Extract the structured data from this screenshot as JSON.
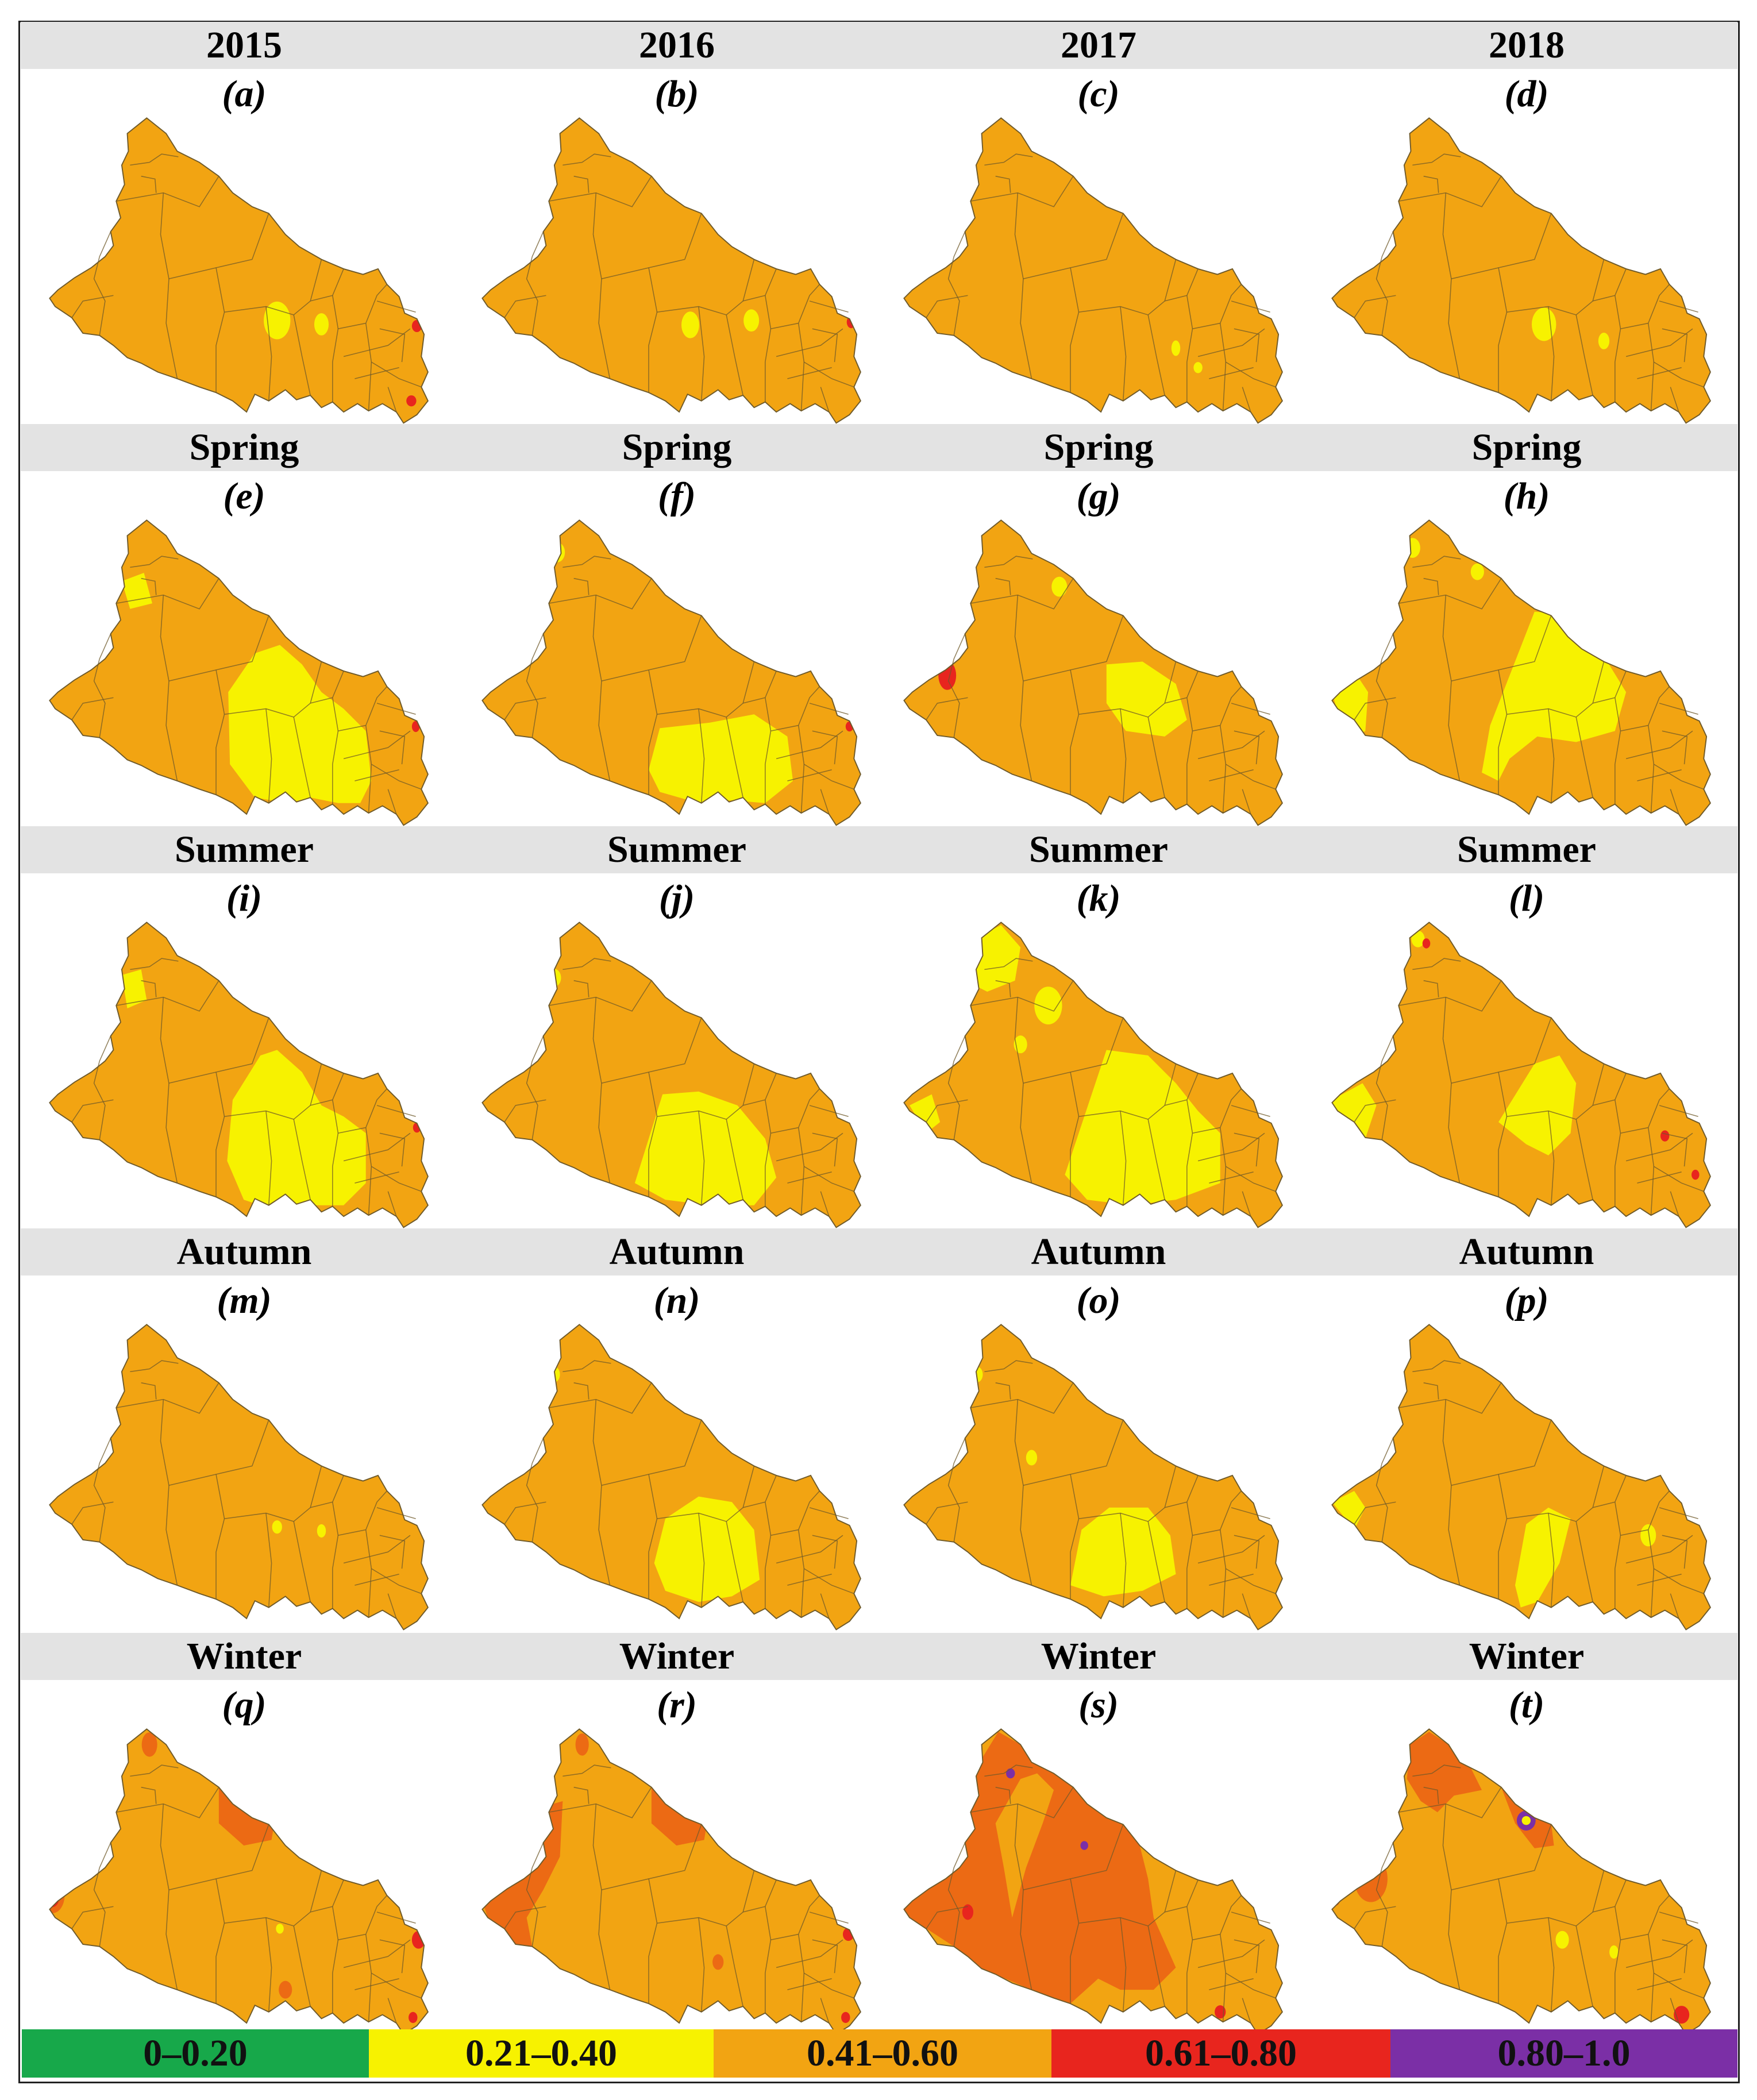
{
  "colors": {
    "class_1": "#17a84a",
    "class_2": "#f7f200",
    "class_3": "#f2a412",
    "class_4": "#e8251e",
    "class_5": "#7b2fa6",
    "dark_orange": "#ec6a14",
    "boundary": "#6f5a2a"
  },
  "rows": [
    {
      "header": [
        "2015",
        "2016",
        "2017",
        "2018"
      ],
      "labels": [
        "(a)",
        "(b)",
        "(c)",
        "(d)"
      ]
    },
    {
      "header": [
        "Spring",
        "Spring",
        "Spring",
        "Spring"
      ],
      "labels": [
        "(e)",
        "(f)",
        "(g)",
        "(h)"
      ]
    },
    {
      "header": [
        "Summer",
        "Summer",
        "Summer",
        "Summer"
      ],
      "labels": [
        "(i)",
        "(j)",
        "(k)",
        "(l)"
      ]
    },
    {
      "header": [
        "Autumn",
        "Autumn",
        "Autumn",
        "Autumn"
      ],
      "labels": [
        "(m)",
        "(n)",
        "(o)",
        "(p)"
      ]
    },
    {
      "header": [
        "Winter",
        "Winter",
        "Winter",
        "Winter"
      ],
      "labels": [
        "(q)",
        "(r)",
        "(s)",
        "(t)"
      ]
    }
  ],
  "legend": [
    {
      "label": "0–0.20",
      "color": "#17a84a"
    },
    {
      "label": "0.21–0.40",
      "color": "#f7f200"
    },
    {
      "label": "0.41–0.60",
      "color": "#f2a412"
    },
    {
      "label": "0.61–0.80",
      "color": "#e8251e"
    },
    {
      "label": "0.80–1.0",
      "color": "#7b2fa6"
    }
  ]
}
